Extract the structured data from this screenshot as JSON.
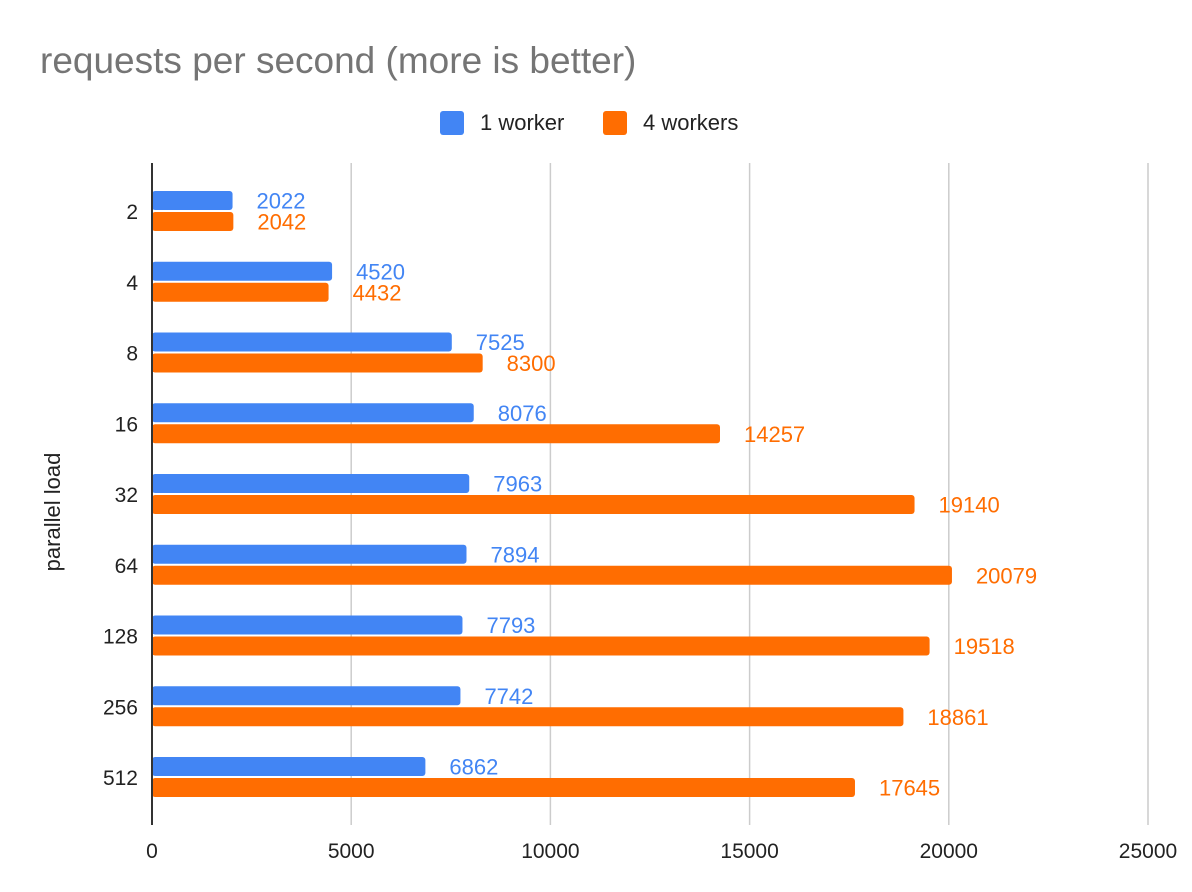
{
  "chart_data": {
    "type": "bar",
    "orientation": "horizontal",
    "title": "requests per second (more is better)",
    "xlabel": "",
    "ylabel": "parallel load",
    "categories": [
      "2",
      "4",
      "8",
      "16",
      "32",
      "64",
      "128",
      "256",
      "512"
    ],
    "series": [
      {
        "name": "1 worker",
        "color": "#4285f4",
        "values": [
          2022,
          4520,
          7525,
          8076,
          7963,
          7894,
          7793,
          7742,
          6862
        ]
      },
      {
        "name": "4 workers",
        "color": "#ff6d01",
        "values": [
          2042,
          4432,
          8300,
          14257,
          19140,
          20079,
          19518,
          18861,
          17645
        ]
      }
    ],
    "xlim": [
      0,
      25000
    ],
    "xticks": [
      0,
      5000,
      10000,
      15000,
      20000,
      25000
    ],
    "grid": true,
    "legend": "top-center",
    "data_labels": true
  }
}
